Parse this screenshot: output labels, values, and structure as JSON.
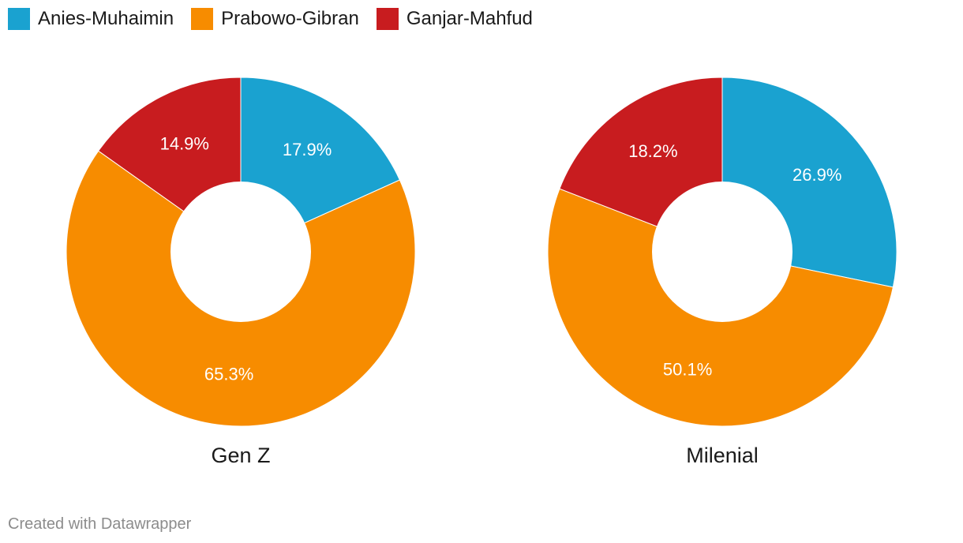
{
  "legend": {
    "items": [
      {
        "label": "Anies-Muhaimin",
        "color": "#1aa2d0"
      },
      {
        "label": "Prabowo-Gibran",
        "color": "#f78c00"
      },
      {
        "label": "Ganjar-Mahfud",
        "color": "#c81c1f"
      }
    ]
  },
  "chart_data": {
    "type": "pie",
    "variant": "donut",
    "series_names": [
      "Anies-Muhaimin",
      "Prabowo-Gibran",
      "Ganjar-Mahfud"
    ],
    "colors": [
      "#1aa2d0",
      "#f78c00",
      "#c81c1f"
    ],
    "charts": [
      {
        "title": "Gen Z",
        "values": [
          17.9,
          65.3,
          14.9
        ],
        "labels": [
          "17.9%",
          "65.3%",
          "14.9%"
        ]
      },
      {
        "title": "Milenial",
        "values": [
          26.9,
          50.1,
          18.2
        ],
        "labels": [
          "26.9%",
          "50.1%",
          "18.2%"
        ]
      }
    ]
  },
  "footer": {
    "credit": "Created with Datawrapper"
  }
}
